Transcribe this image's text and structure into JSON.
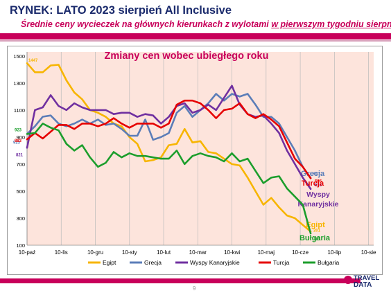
{
  "header": {
    "title": "RYNEK: LATO 2023 sierpień All Inclusive",
    "subtitle_pre": "Średnie ceny wycieczek na głównych kierunkach z wylotami ",
    "subtitle_underlined": "w pierwszym tygodniu sierpnia"
  },
  "footer": {
    "page_number": "9",
    "logo_line1": "TRAVEL",
    "logo_line2": "DATA"
  },
  "colors": {
    "Egipt": "#f7b500",
    "Grecja": "#5b7db8",
    "Wyspy Kanaryjskie": "#7030a0",
    "Turcja": "#e60000",
    "Bułgaria": "#1c9e2c",
    "plot_bg": "#fde4dc",
    "accent": "#c8005a"
  },
  "chart_data": {
    "type": "line",
    "title": "Zmiany cen wobec ubiegłego roku",
    "xlabel": "",
    "ylabel": "",
    "x_ticks": [
      "10-paź",
      "10-lis",
      "10-gru",
      "10-sty",
      "10-lut",
      "10-mar",
      "10-kwi",
      "10-maj",
      "10-cze",
      "10-lip",
      "10-sie"
    ],
    "y_ticks": [
      100,
      300,
      500,
      700,
      900,
      1100,
      1300,
      1500
    ],
    "ylim": [
      100,
      1530
    ],
    "x_range_weeks": [
      0,
      44
    ],
    "grid": "vertical",
    "legend": "bottom",
    "series": [
      {
        "name": "Egipt",
        "x": [
          0,
          1,
          2,
          3,
          4,
          5,
          6,
          7,
          8,
          9,
          10,
          11,
          12,
          13,
          14,
          15,
          16,
          17,
          18,
          19,
          20,
          21,
          22,
          23,
          24,
          25,
          26,
          27,
          28,
          29,
          30,
          31,
          32,
          33,
          34,
          35,
          36
        ],
        "values": [
          1447,
          1380,
          1380,
          1430,
          1435,
          1320,
          1230,
          1180,
          1100,
          1080,
          1050,
          1000,
          980,
          900,
          850,
          720,
          730,
          750,
          840,
          850,
          960,
          860,
          870,
          790,
          780,
          740,
          700,
          690,
          600,
          500,
          400,
          450,
          380,
          320,
          300,
          250,
          201
        ],
        "first_label": "1447",
        "last_label": "201",
        "right_label": "Egipt"
      },
      {
        "name": "Grecja",
        "x": [
          0,
          1,
          2,
          3,
          4,
          5,
          6,
          7,
          8,
          9,
          10,
          11,
          12,
          13,
          14,
          15,
          16,
          17,
          18,
          19,
          20,
          21,
          22,
          23,
          24,
          25,
          26,
          27,
          28,
          29,
          30,
          31,
          32,
          33,
          34,
          35,
          36
        ],
        "values": [
          923,
          980,
          1051,
          1060,
          1000,
          980,
          1000,
          1030,
          1000,
          1030,
          990,
          1000,
          960,
          910,
          910,
          1030,
          880,
          900,
          930,
          1080,
          1130,
          1050,
          1100,
          1150,
          1220,
          1170,
          1220,
          1200,
          1220,
          1140,
          1050,
          1050,
          1000,
          900,
          800,
          680,
          597
        ],
        "first_label": "923",
        "last_label": "597",
        "right_label": "Grecja"
      },
      {
        "name": "Wyspy Kanaryjskie",
        "x": [
          0,
          1,
          2,
          3,
          4,
          5,
          6,
          7,
          8,
          9,
          10,
          11,
          12,
          13,
          14,
          15,
          16,
          17,
          18,
          19,
          20,
          21,
          22,
          23,
          24,
          25,
          26,
          27,
          28,
          29,
          30,
          31,
          32,
          33,
          34,
          35,
          36
        ],
        "values": [
          821,
          1100,
          1120,
          1210,
          1130,
          1100,
          1150,
          1120,
          1100,
          1100,
          1100,
          1070,
          1080,
          1080,
          1050,
          1070,
          1060,
          1000,
          1050,
          1130,
          1150,
          1080,
          1100,
          1140,
          1100,
          1190,
          1280,
          1140,
          1070,
          1050,
          1060,
          1000,
          930,
          800,
          700,
          600,
          516
        ],
        "first_label": "821",
        "last_label": "516",
        "right_label": "Wyspy Kanaryjskie"
      },
      {
        "name": "Turcja",
        "x": [
          0,
          1,
          2,
          3,
          4,
          5,
          6,
          7,
          8,
          9,
          10,
          11,
          12,
          13,
          14,
          15,
          16,
          17,
          18,
          19,
          20,
          21,
          22,
          23,
          24,
          25,
          26,
          27,
          28,
          29,
          30,
          31,
          32,
          33,
          34,
          35,
          36
        ],
        "values": [
          883,
          930,
          890,
          940,
          990,
          990,
          960,
          1000,
          1000,
          980,
          1000,
          1040,
          1000,
          970,
          1000,
          1000,
          1000,
          970,
          1000,
          1140,
          1170,
          1170,
          1150,
          1100,
          1040,
          1100,
          1110,
          1150,
          1070,
          1040,
          1070,
          1030,
          980,
          860,
          740,
          680,
          595
        ],
        "first_label": "883",
        "last_label": "595",
        "right_label": "Turcja"
      },
      {
        "name": "Bułgaria",
        "x": [
          0,
          1,
          2,
          3,
          4,
          5,
          6,
          7,
          8,
          9,
          10,
          11,
          12,
          13,
          14,
          15,
          16,
          17,
          18,
          19,
          20,
          21,
          22,
          23,
          24,
          25,
          26,
          27,
          28,
          29,
          30,
          31,
          32,
          33,
          34,
          35,
          36
        ],
        "values": [
          923,
          930,
          1000,
          970,
          950,
          850,
          800,
          840,
          750,
          680,
          710,
          790,
          750,
          780,
          760,
          760,
          750,
          740,
          740,
          800,
          700,
          760,
          780,
          760,
          750,
          720,
          780,
          720,
          740,
          650,
          560,
          600,
          610,
          520,
          460,
          400,
          187
        ],
        "first_label": "923",
        "last_label": "187",
        "right_label": "Bułgaria"
      }
    ]
  }
}
